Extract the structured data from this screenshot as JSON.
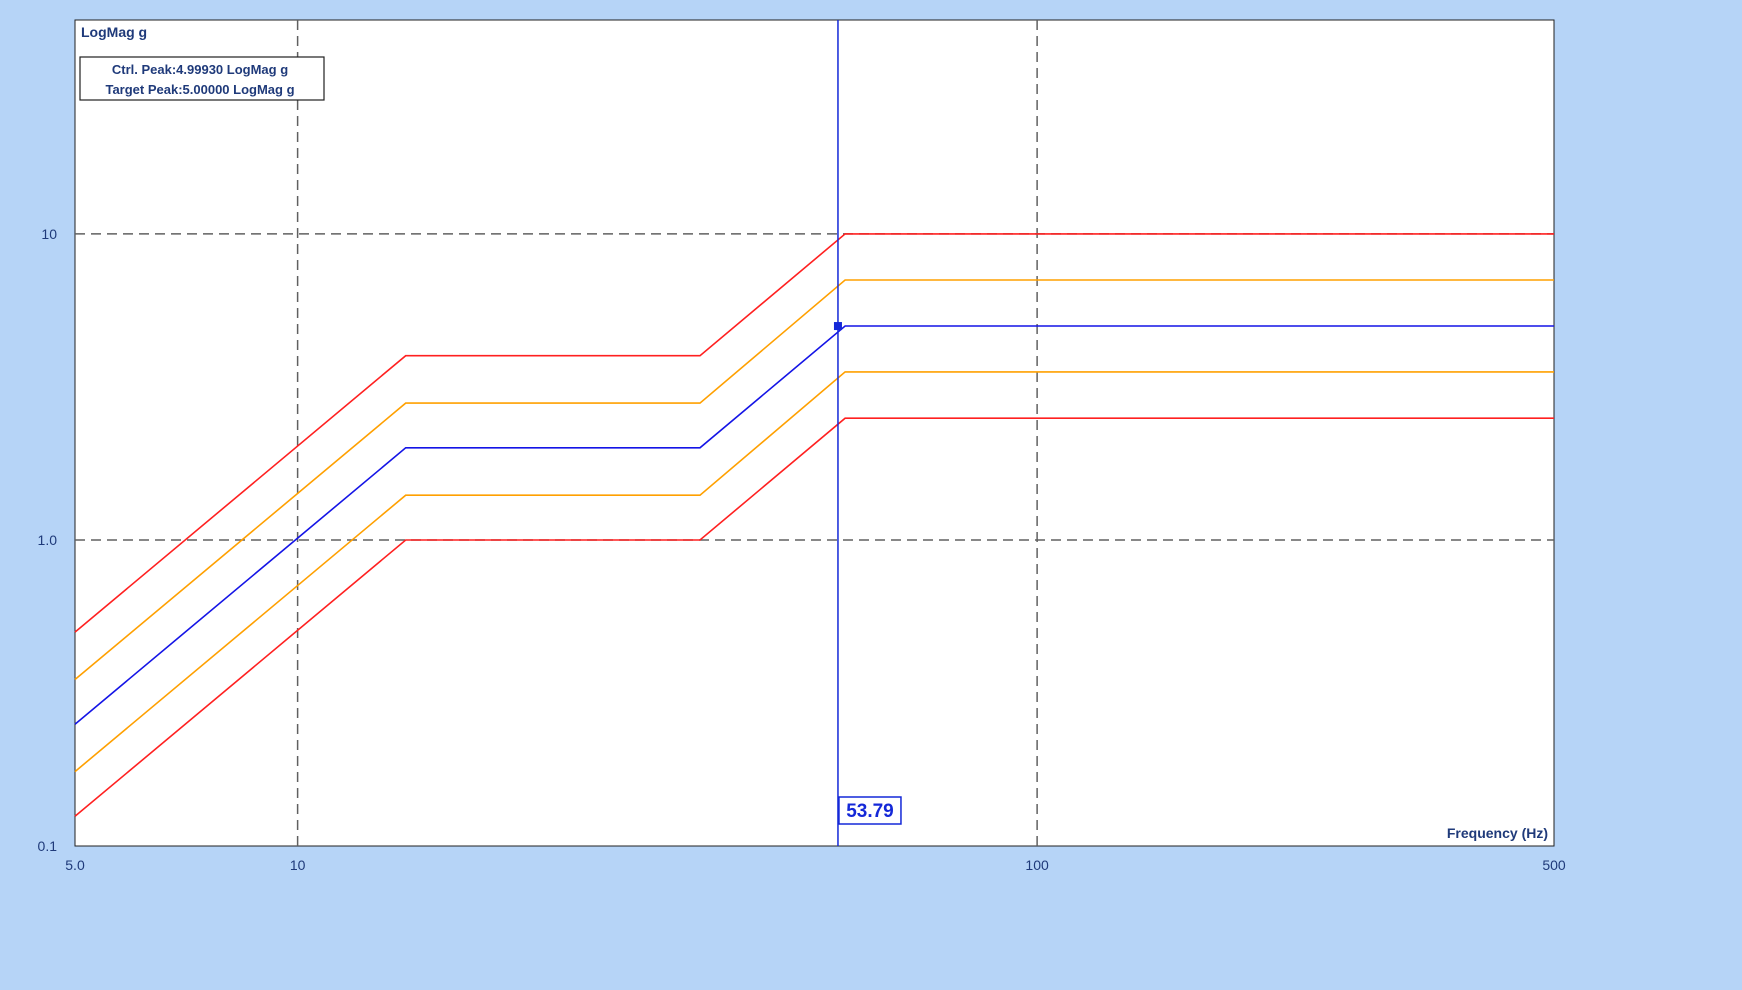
{
  "colors": {
    "frame": "#b6d4f7",
    "plot_bg": "#ffffff",
    "grid": "#606060",
    "text": "#1f3a7a",
    "control": "#1414e6",
    "alarm": "#ff2020",
    "abort": "#ffa000",
    "cursor": "#1428d8"
  },
  "chart_data": {
    "type": "line",
    "ylabel": "LogMag g",
    "xlabel": "Frequency (Hz)",
    "x_scale": "log",
    "y_scale": "log",
    "xlim": [
      5,
      500
    ],
    "ylim": [
      0.1,
      50
    ],
    "grid": true,
    "x_ticks": [
      {
        "value": 5,
        "label": "5.0"
      },
      {
        "value": 10,
        "label": "10"
      },
      {
        "value": 100,
        "label": "100"
      },
      {
        "value": 500,
        "label": "500"
      }
    ],
    "y_ticks": [
      {
        "value": 0.1,
        "label": "0.1"
      },
      {
        "value": 1,
        "label": "1.0"
      },
      {
        "value": 10,
        "label": "10"
      }
    ],
    "annotations": {
      "ctrl_peak": "Ctrl. Peak:4.99930 LogMag g",
      "target_peak": "Target Peak:5.00000 LogMag g"
    },
    "cursor": {
      "x": 53.79,
      "y": 5,
      "label": "53.79"
    },
    "series": [
      {
        "role": "upper_abort",
        "color_key": "alarm",
        "x": [
          5,
          14,
          35,
          55,
          500
        ],
        "y": [
          0.5,
          4,
          4,
          10,
          10
        ]
      },
      {
        "role": "upper_alarm",
        "color_key": "abort",
        "x": [
          5,
          14,
          35,
          55,
          500
        ],
        "y": [
          0.35,
          2.8,
          2.8,
          7.07,
          7.07
        ]
      },
      {
        "role": "control",
        "color_key": "control",
        "x": [
          5,
          14,
          35,
          55,
          500
        ],
        "y": [
          0.25,
          2,
          2,
          5,
          5
        ]
      },
      {
        "role": "lower_alarm",
        "color_key": "abort",
        "x": [
          5,
          14,
          35,
          55,
          500
        ],
        "y": [
          0.175,
          1.4,
          1.4,
          3.54,
          3.54
        ]
      },
      {
        "role": "lower_abort",
        "color_key": "alarm",
        "x": [
          5,
          14,
          35,
          55,
          500
        ],
        "y": [
          0.125,
          1,
          1,
          2.5,
          2.5
        ]
      }
    ]
  }
}
